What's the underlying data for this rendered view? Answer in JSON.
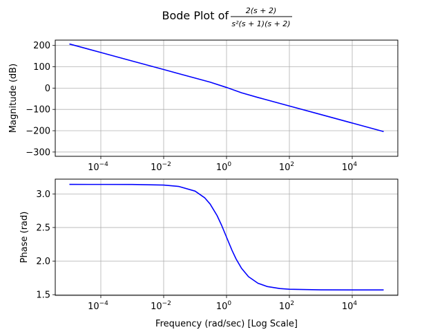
{
  "figure": {
    "title_prefix": "Bode Plot of",
    "tf_numerator": "2(s + 2)",
    "tf_denominator": "s²(s + 1)(s + 2)"
  },
  "chart_data": [
    {
      "type": "line",
      "name": "magnitude",
      "xscale": "log",
      "xlim": [
        1e-05,
        100000
      ],
      "ylim": [
        -320,
        225
      ],
      "grid": true,
      "xlabel": "",
      "ylabel": "Magnitude (dB)",
      "xticks": [
        {
          "value": 0.0001,
          "label": "10−4"
        },
        {
          "value": 0.01,
          "label": "10−2"
        },
        {
          "value": 1,
          "label": "100"
        },
        {
          "value": 100,
          "label": "102"
        },
        {
          "value": 10000,
          "label": "104"
        }
      ],
      "yticks": [
        200,
        100,
        0,
        -100,
        -200,
        -300
      ],
      "series": [
        {
          "color": "#0000ff",
          "x": [
            1e-05,
            0.0001,
            0.001,
            0.01,
            0.1,
            0.3,
            1,
            3,
            10,
            100,
            1000,
            10000,
            100000
          ],
          "y": [
            207,
            167,
            127,
            87,
            47,
            28,
            3,
            -22,
            -44,
            -84,
            -124,
            -164,
            -204
          ]
        }
      ]
    },
    {
      "type": "line",
      "name": "phase",
      "xscale": "log",
      "xlim": [
        1e-05,
        100000
      ],
      "ylim": [
        1.49,
        3.22
      ],
      "grid": true,
      "xlabel": "Frequency (rad/sec) [Log Scale]",
      "ylabel": "Phase (rad)",
      "xticks": [
        {
          "value": 0.0001,
          "label": "10−4"
        },
        {
          "value": 0.01,
          "label": "10−2"
        },
        {
          "value": 1,
          "label": "100"
        },
        {
          "value": 100,
          "label": "102"
        },
        {
          "value": 10000,
          "label": "104"
        }
      ],
      "yticks": [
        1.5,
        2.0,
        2.5,
        3.0
      ],
      "series": [
        {
          "color": "#0000ff",
          "x": [
            1e-05,
            0.0001,
            0.001,
            0.01,
            0.03,
            0.1,
            0.2,
            0.3,
            0.5,
            0.7,
            1,
            1.5,
            2,
            3,
            5,
            10,
            20,
            50,
            100,
            1000,
            10000,
            100000
          ],
          "y": [
            3.1416,
            3.1415,
            3.1406,
            3.1316,
            3.1116,
            3.0419,
            2.9442,
            2.8501,
            2.6779,
            2.5313,
            2.3562,
            2.1588,
            2.0344,
            1.8925,
            1.7682,
            1.6705,
            1.6206,
            1.5908,
            1.5808,
            1.5718,
            1.5709,
            1.5708
          ]
        }
      ]
    }
  ]
}
